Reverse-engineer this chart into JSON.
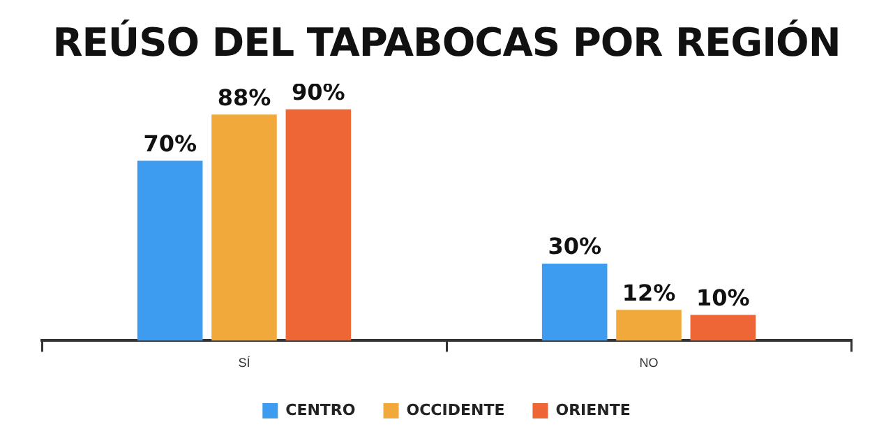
{
  "chart_data": {
    "type": "bar",
    "title": "REÚSO DEL TAPABOCAS POR REGIÓN",
    "categories": [
      "SÍ",
      "NO"
    ],
    "series": [
      {
        "name": "CENTRO",
        "color": "#3d9cf0",
        "values": [
          70,
          30
        ],
        "value_labels": [
          "70%",
          "30%"
        ]
      },
      {
        "name": "OCCIDENTE",
        "color": "#f2a93b",
        "values": [
          88,
          12
        ],
        "value_labels": [
          "88%",
          "12%"
        ]
      },
      {
        "name": "ORIENTE",
        "color": "#ee6536",
        "values": [
          90,
          10
        ],
        "value_labels": [
          "90%",
          "10%"
        ]
      }
    ],
    "grid": false,
    "legend": "bottom"
  }
}
